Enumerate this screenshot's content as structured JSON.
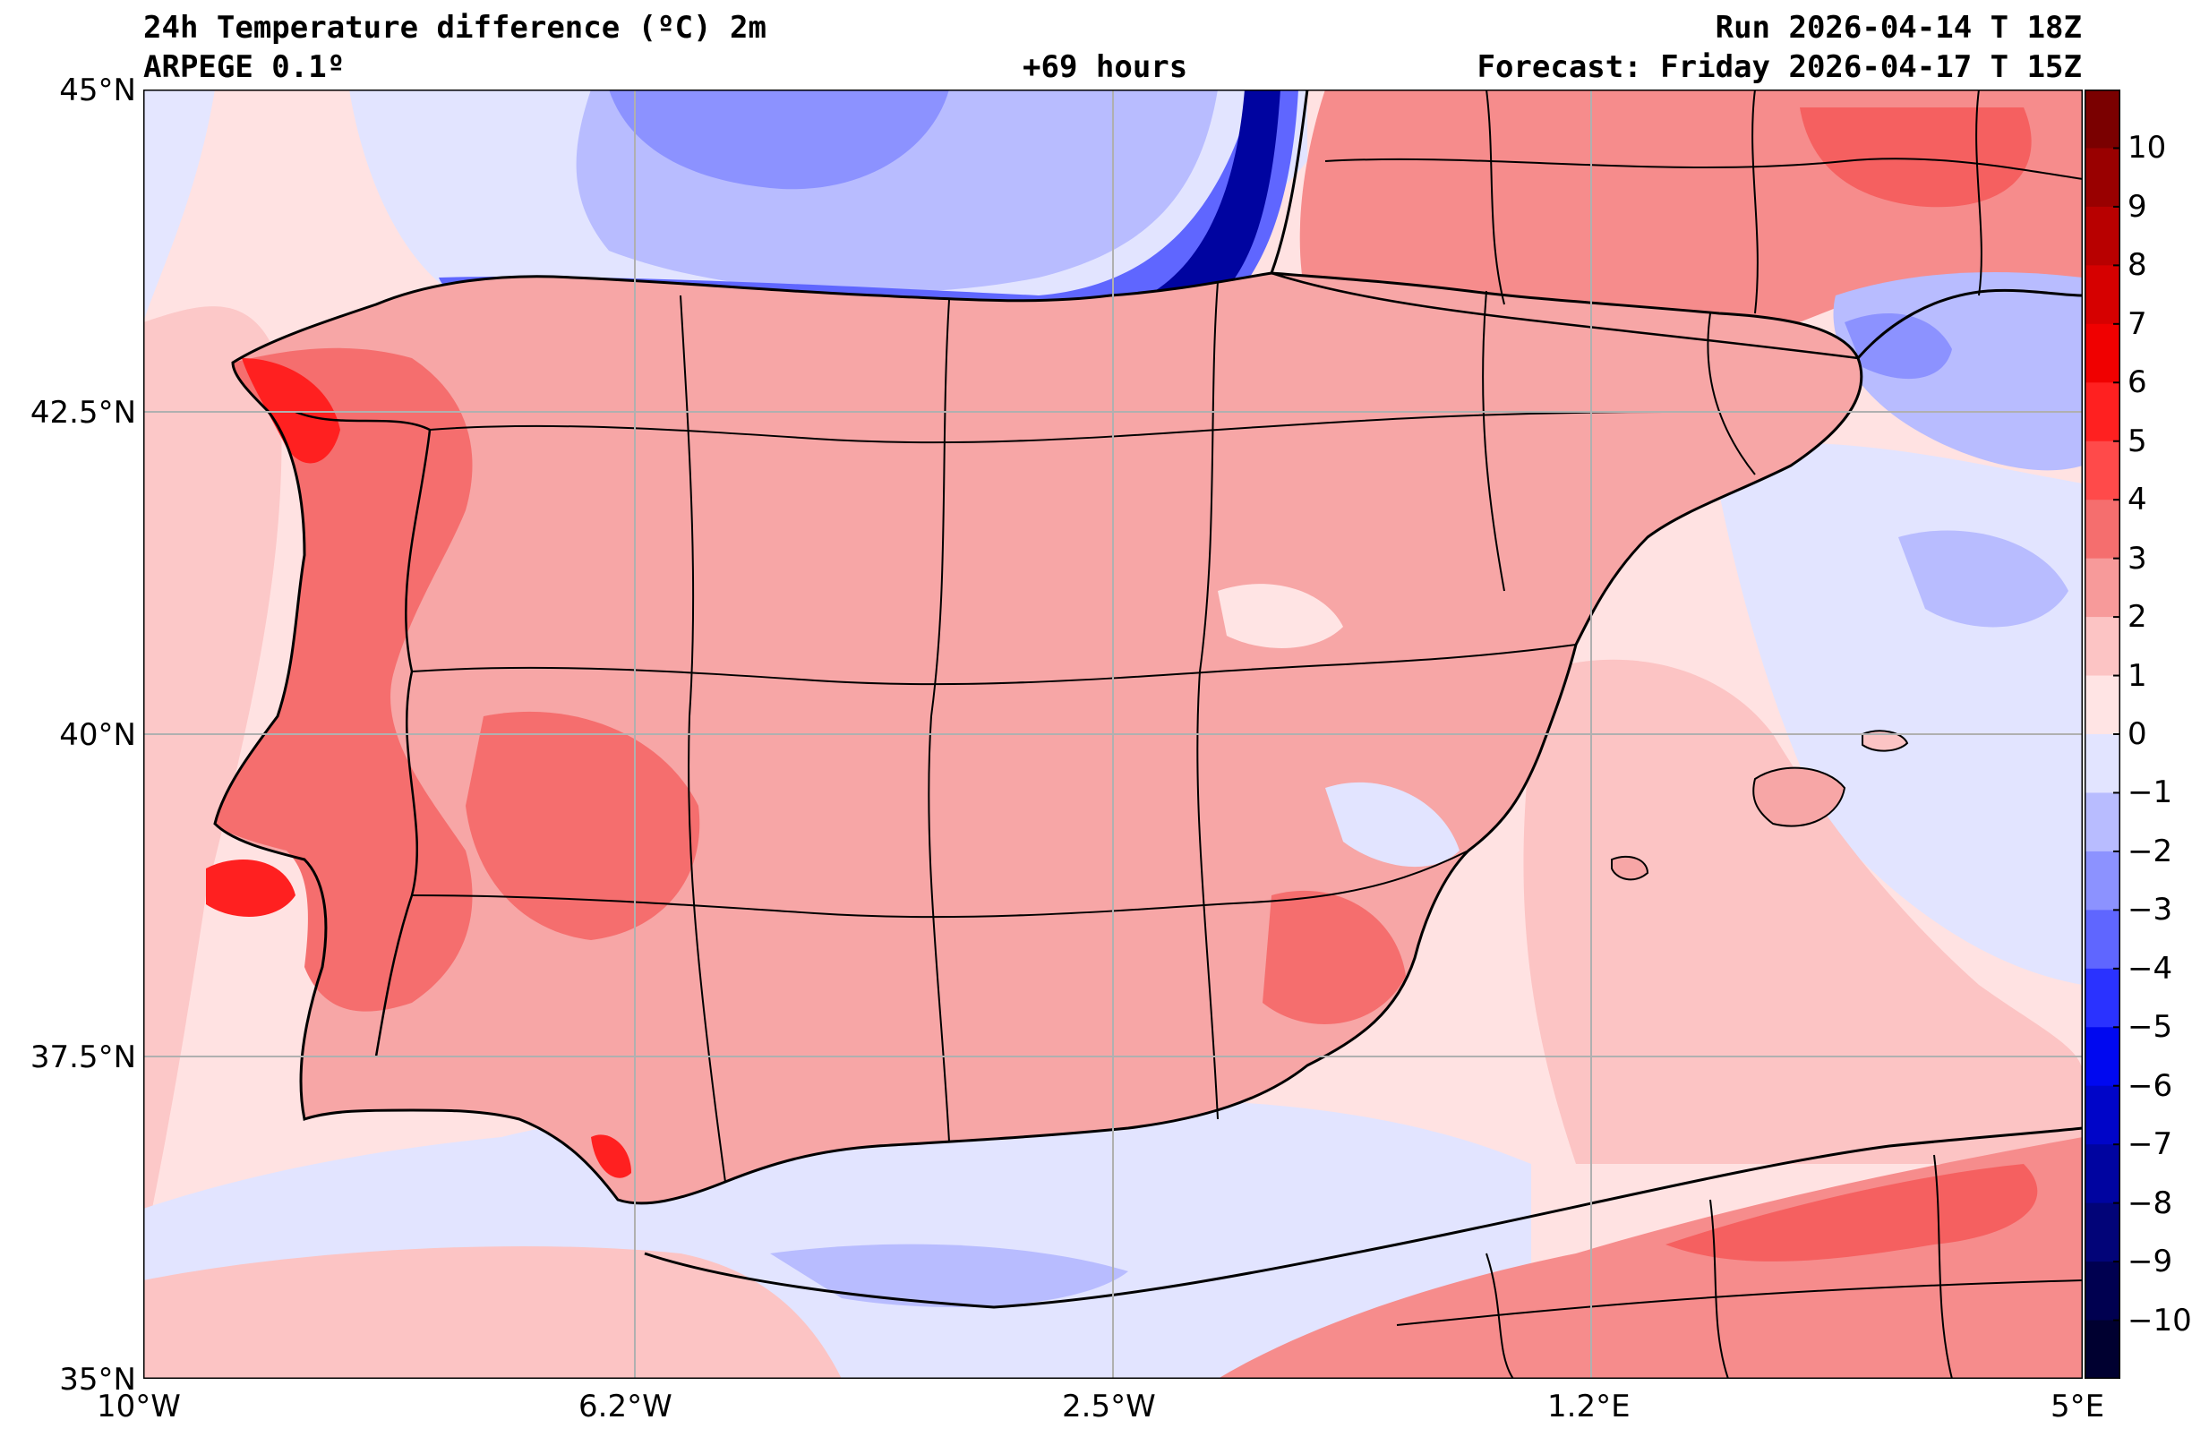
{
  "header": {
    "title": "24h Temperature difference (ºC) 2m",
    "model": "ARPEGE 0.1º",
    "lead": "+69 hours",
    "run": "Run 2026-04-14 T 18Z",
    "forecast": "Forecast: Friday 2026-04-17 T 15Z"
  },
  "axes": {
    "lat_labels": [
      "45°N",
      "42.5°N",
      "40°N",
      "37.5°N",
      "35°N"
    ],
    "lon_labels": [
      "10°W",
      "6.2°W",
      "2.5°W",
      "1.2°E",
      "5°E"
    ],
    "lat_range": [
      35,
      45
    ],
    "lon_range": [
      -10,
      5
    ],
    "gridlines": true
  },
  "colorbar": {
    "labels": [
      "10",
      "9",
      "8",
      "7",
      "6",
      "5",
      "4",
      "3",
      "2",
      "1",
      "0",
      "−1",
      "−2",
      "−3",
      "−4",
      "−5",
      "−6",
      "−7",
      "−8",
      "−9",
      "−10"
    ],
    "levels": [
      10,
      9,
      8,
      7,
      6,
      5,
      4,
      3,
      2,
      1,
      0,
      -1,
      -2,
      -3,
      -4,
      -5,
      -6,
      -7,
      -8,
      -9,
      -10
    ],
    "colors_top_to_bottom": [
      "#7a0000",
      "#990000",
      "#b80000",
      "#d60000",
      "#f00000",
      "#ff2020",
      "#ff4a4a",
      "#f56e6e",
      "#f79a9a",
      "#fcc4c4",
      "#ffe4e4",
      "#e2e4ff",
      "#b8bcff",
      "#8c92ff",
      "#5f66ff",
      "#2a32ff",
      "#0008f0",
      "#0005c8",
      "#0004a0",
      "#020478",
      "#000050",
      "#000030"
    ]
  },
  "map": {
    "sea_color": "#ffe0e0",
    "land_base_color": "#f7a6a6",
    "coast_color": "#000000",
    "grid_color": "#b0b0b0"
  }
}
